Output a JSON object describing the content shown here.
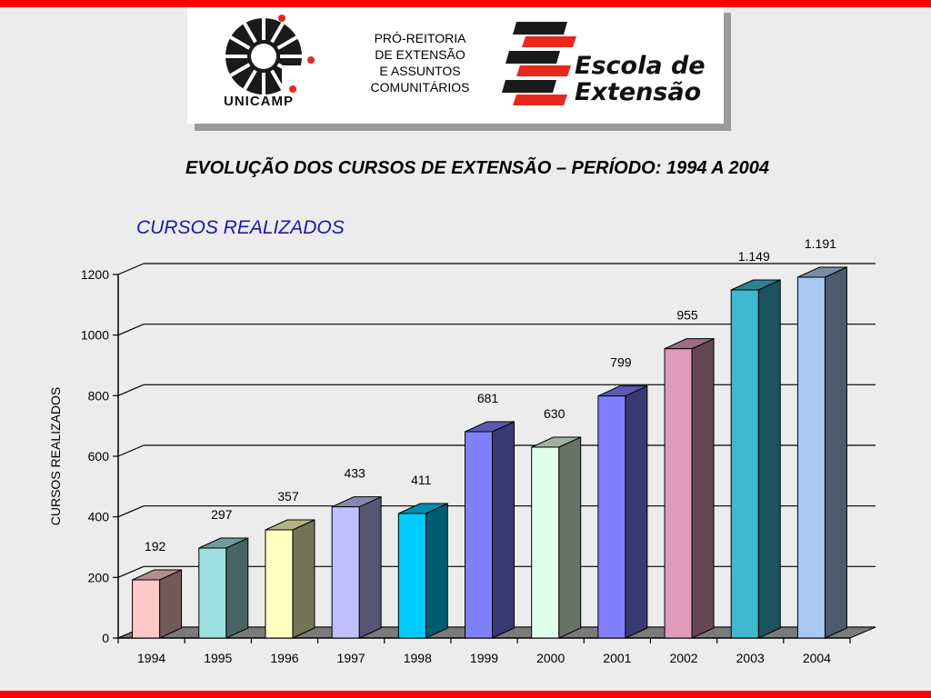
{
  "header": {
    "unicamp": "UNICAMP",
    "pro_reitoria_lines": [
      "PRÓ-REITORIA",
      "DE EXTENSÃO",
      "E ASSUNTOS",
      "COMUNITÁRIOS"
    ],
    "escola_lines": [
      "Escola de",
      "Extensão"
    ]
  },
  "colors": {
    "accent_red": "#ff0000",
    "subtitle_blue": "#1a1aa8"
  },
  "chart_data": {
    "type": "bar",
    "title": "EVOLUÇÃO DOS CURSOS DE EXTENSÃO – PERÍODO: 1994 A 2004",
    "subtitle": "CURSOS REALIZADOS",
    "xlabel": "",
    "ylabel": "CURSOS REALIZADOS",
    "ylim": [
      0,
      1200
    ],
    "yticks": [
      0,
      200,
      400,
      600,
      800,
      1000,
      1200
    ],
    "grid": true,
    "three_d": true,
    "categories": [
      "1994",
      "1995",
      "1996",
      "1997",
      "1998",
      "1999",
      "2000",
      "2001",
      "2002",
      "2003",
      "2004"
    ],
    "values": [
      192,
      297,
      357,
      433,
      411,
      681,
      630,
      799,
      955,
      1149,
      1191
    ],
    "data_labels": [
      "192",
      "297",
      "357",
      "433",
      "411",
      "681",
      "630",
      "799",
      "955",
      "1.149",
      "1.191"
    ],
    "bar_colors": [
      "#ffc8c8",
      "#9ee0e0",
      "#ffffc0",
      "#c0c0ff",
      "#00ccff",
      "#8080ff",
      "#e0ffe8",
      "#8080ff",
      "#e09bb8",
      "#3fb8d0",
      "#a8c8f0"
    ]
  }
}
